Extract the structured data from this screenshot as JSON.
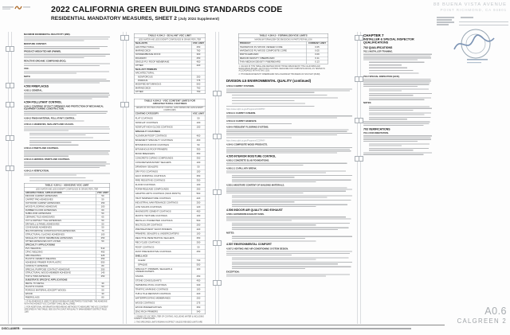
{
  "header": {
    "title": "2022 CALIFORNIA GREEN BUILDING STANDARDS CODE",
    "subtitle": "RESIDENTIAL MANDATORY MEASURES, SHEET 2",
    "subtitle_note": "(July 2024 Supplement)",
    "address_line1": "88 BUENA VISTA AVENUE",
    "address_line2": "POINT RICHMOND, CA 94801"
  },
  "titleblock": {
    "sheet_number": "A0.6",
    "sheet_name": "CALGREEN 2"
  },
  "footer": {
    "disclaimer_label": "DISCLAIMER:"
  },
  "col1": {
    "paras": [
      {
        "lead": "MAXIMUM INCREMENTAL REACTIVITY (MIR).",
        "lines": 3
      },
      {
        "lead": "MOISTURE CONTENT.",
        "lines": 2
      },
      {
        "lead": "PRODUCT-WEIGHTED MIR (PWMIR).",
        "lines": 3
      },
      {
        "lead": "REACTIVE ORGANIC COMPOUND (ROC).",
        "lines": 2
      },
      {
        "lead": "VOC.",
        "lines": 2
      },
      {
        "lead": "NOTE:",
        "lines": 3
      },
      {
        "heading": "4.503 FIREPLACES"
      },
      {
        "lead": "4.503.1 GENERAL.",
        "lines": 4
      },
      {
        "heading": "4.504 POLLUTANT CONTROL"
      },
      {
        "lead": "4.504.1 COVERING OF DUCT OPENINGS AND PROTECTION OF MECHANICAL EQUIPMENT DURING CONSTRUCTION.",
        "lines": 3
      },
      {
        "lead": "4.504.2 FINISH MATERIAL POLLUTANT CONTROL.",
        "lines": 1
      },
      {
        "lead": "4.504.2.1 ADHESIVES, SEALANTS AND CAULKS.",
        "lines": 3
      },
      {
        "indent": true,
        "lines": 2
      },
      {
        "indent": true,
        "lines": 1
      },
      {
        "indent": true,
        "lines": 2
      },
      {
        "indent": true,
        "lines": 1
      },
      {
        "lead": "4.504.2.2 PAINTS AND COATINGS.",
        "lines": 4
      },
      {
        "lead": "4.504.2.3 AEROSOL PAINTS AND COATINGS.",
        "lines": 4
      },
      {
        "lead": "4.504.2.4 VERIFICATION.",
        "lines": 2
      },
      {
        "indent": true,
        "lines": 1
      },
      {
        "indent": true,
        "lines": 1
      }
    ]
  },
  "col3": {
    "division_heading": "DIVISION 4.5   ENVIRONMENTAL QUALITY (continued)",
    "paras": [
      {
        "lead": "4.504.3 CARPET SYSTEMS.",
        "lines": 3
      },
      {
        "indent": true,
        "lines": 1
      },
      {
        "indent": true,
        "lines": 1
      },
      {
        "indent": true,
        "lines": 1
      },
      {
        "indent": true,
        "lines": 1
      },
      {
        "lines": 1
      },
      {
        "link": "https://www.cdph.ca.gov/Programs/CCDPHP/"
      },
      {
        "lead": "4.504.3.1 CARPET CUSHION.",
        "lines": 2
      },
      {
        "lead": "4.504.3.2 CARPET ADHESIVE.",
        "lines": 1
      },
      {
        "lead": "4.504.4 RESILIENT FLOORING SYSTEMS.",
        "lines": 4
      },
      {
        "lines": 1
      },
      {
        "link": "https://www.cdph.ca.gov/Programs/CCDPHP/"
      },
      {
        "lead": "4.504.5 COMPOSITE WOOD PRODUCTS.",
        "lines": 4
      },
      {
        "heading": "4.505 INTERIOR MOISTURE CONTROL"
      },
      {
        "lead": "4.505.2 CONCRETE SLAB FOUNDATIONS.",
        "lines": 2
      },
      {
        "lead": "4.505.2.1 CAPILLARY BREAK.",
        "lines": 2
      },
      {
        "indent": true,
        "lines": 2
      },
      {
        "indent": true,
        "lines": 2
      },
      {
        "lead": "4.505.3 MOISTURE CONTENT OF BUILDING MATERIALS.",
        "lines": 4
      },
      {
        "indent": true,
        "lines": 2
      },
      {
        "indent": true,
        "lines": 2
      },
      {
        "indent": true,
        "lines": 2
      },
      {
        "heading": "4.506 INDOOR AIR QUALITY AND EXHAUST"
      },
      {
        "lead": "4.506.1 BATHROOM EXHAUST FANS.",
        "lines": 3
      },
      {
        "indent": true,
        "lines": 2
      },
      {
        "indent": true,
        "lines": 2
      },
      {
        "lead": "NOTES:",
        "lines": 0
      },
      {
        "indent": true,
        "lines": 2
      },
      {
        "indent": true,
        "lines": 1
      },
      {
        "heading": "4.507 ENVIRONMENTAL COMFORT"
      },
      {
        "lead": "4.507.2 HEATING AND AIR-CONDITIONING SYSTEM DESIGN.",
        "lines": 3
      },
      {
        "indent": true,
        "lines": 2
      },
      {
        "indent": true,
        "lines": 2
      },
      {
        "indent": true,
        "lines": 2
      },
      {
        "lead": "EXCEPTION:",
        "lines": 2
      }
    ]
  },
  "col4": {
    "chapter": "CHAPTER 7",
    "chapter_sub": "INSTALLER & SPECIAL INSPECTOR QUALIFICATIONS",
    "section_702": "702 QUALIFICATIONS",
    "section_703": "703 VERIFICATIONS",
    "paras_702": [
      {
        "lead": "702.1 INSTALLER TRAINING.",
        "lines": 4
      },
      {
        "indent": true,
        "lines": 1
      },
      {
        "indent": true,
        "lines": 1
      },
      {
        "indent": true,
        "lines": 1
      },
      {
        "indent": true,
        "lines": 1
      },
      {
        "indent": true,
        "lines": 1
      },
      {
        "lead": "702.2 SPECIAL INSPECTION [HCD].",
        "lines": 5
      },
      {
        "indent": true,
        "lines": 2
      },
      {
        "indent": true,
        "lines": 2
      },
      {
        "indent": true,
        "lines": 2
      },
      {
        "lead": "NOTES:",
        "lines": 0
      },
      {
        "indent": true,
        "lines": 3
      },
      {
        "indent": true,
        "lines": 2
      },
      {
        "indent": true,
        "lines": 2
      },
      {
        "lines": 3
      }
    ],
    "paras_703": [
      {
        "lead": "703.1 DOCUMENTATION.",
        "lines": 4
      },
      {
        "indent": true,
        "lines": 2
      },
      {
        "indent": true,
        "lines": 2
      },
      {
        "lines": 2
      }
    ]
  },
  "tables": {
    "adhesive": {
      "title": "TABLE 4.504.1 - ADHESIVE VOC LIMIT",
      "note": "LESS WATER AND LESS EXEMPT COMPOUNDS IN GRAMS PER LITER",
      "cols": [
        "ARCHITECTURAL APPLICATIONS",
        "VOC LIMIT"
      ],
      "rows": [
        {
          "label": "INDOOR CARPET ADHESIVES",
          "value": "50"
        },
        {
          "label": "CARPET PAD ADHESIVES",
          "value": "50"
        },
        {
          "label": "OUTDOOR CARPET ADHESIVES",
          "value": "150"
        },
        {
          "label": "WOOD FLOORING ADHESIVE",
          "value": "100"
        },
        {
          "label": "RUBBER FLOOR ADHESIVES",
          "value": "60"
        },
        {
          "label": "SUBFLOOR ADHESIVES",
          "value": "50"
        },
        {
          "label": "CERAMIC TILE ADHESIVES",
          "value": "65"
        },
        {
          "label": "VCT & ASPHALT TILE ADHESIVES",
          "value": "50"
        },
        {
          "label": "DRYWALL & PANEL ADHESIVES",
          "value": "50"
        },
        {
          "label": "COVE BASE ADHESIVES",
          "value": "50"
        },
        {
          "label": "MULTIPURPOSE CONSTRUCTION ADHESIVES",
          "value": "70"
        },
        {
          "label": "STRUCTURAL GLAZING ADHESIVES",
          "value": "100"
        },
        {
          "label": "SINGLE-PLY ROOF MEMBRANE ADHESIVES",
          "value": "250"
        },
        {
          "label": "OTHER ADHESIVES NOT LISTED",
          "value": "50"
        },
        {
          "sub": "SPECIALTY APPLICATIONS"
        },
        {
          "label": "PVC WELDING",
          "value": "510"
        },
        {
          "label": "CPVC WELDING",
          "value": "490"
        },
        {
          "label": "ABS WELDING",
          "value": "325"
        },
        {
          "label": "PLASTIC CEMENT WELDING",
          "value": "250"
        },
        {
          "label": "ADHESIVE PRIMER FOR PLASTIC",
          "value": "550"
        },
        {
          "label": "CONTACT ADHESIVE",
          "value": "80"
        },
        {
          "label": "SPECIAL PURPOSE CONTACT ADHESIVE",
          "value": "250"
        },
        {
          "label": "STRUCTURAL WOOD MEMBER ADHESIVE",
          "value": "140"
        },
        {
          "label": "TOP & TRIM ADHESIVE",
          "value": "250"
        },
        {
          "sub": "SUBSTRATE SPECIFIC APPLICATIONS"
        },
        {
          "label": "METAL TO METAL",
          "value": "30"
        },
        {
          "label": "PLASTIC FOAMS",
          "value": "50"
        },
        {
          "label": "POROUS MATERIAL (EXCEPT WOOD)",
          "value": "50"
        },
        {
          "label": "WOOD",
          "value": "30"
        },
        {
          "label": "FIBERGLASS",
          "value": "80"
        }
      ],
      "footnotes": [
        "1. IF AN ADHESIVE IS USED TO BOND DISSIMILAR SUBSTRATES TOGETHER, THE ADHESIVE WITH THE HIGHEST VOC CONTENT SHALL BE ALLOWED.",
        "2. FOR ADDITIONAL INFORMATION REGARDING METHODS TO MEASURE THE VOC CONTENT SPECIFIED IN THIS TABLE, SEE SOUTH COAST AIR QUALITY MANAGEMENT DISTRICT RULE 1168."
      ]
    },
    "sealant": {
      "title": "TABLE 4.504.2 - SEALANT VOC LIMIT",
      "note": "LESS WATER AND LESS EXEMPT COMPOUNDS IN GRAMS PER LITER",
      "cols": [
        "SEALANTS",
        "VOC LIMIT"
      ],
      "rows": [
        {
          "label": "ARCHITECTURAL",
          "value": "250"
        },
        {
          "label": "MARINE DECK",
          "value": "760"
        },
        {
          "label": "NONMEMBRANE ROOF",
          "value": "300"
        },
        {
          "label": "ROADWAY",
          "value": "250"
        },
        {
          "label": "SINGLE-PLY ROOF MEMBRANE",
          "value": "450"
        },
        {
          "label": "OTHER",
          "value": "420"
        },
        {
          "sub": "SEALANT PRIMERS"
        },
        {
          "label": "ARCHITECTURAL",
          "value": ""
        },
        {
          "label": "NONPOROUS",
          "value": "250",
          "indent": true
        },
        {
          "label": "POROUS",
          "value": "775",
          "indent": true
        },
        {
          "label": "MODIFIED BITUMINOUS",
          "value": "500"
        },
        {
          "label": "MARINE DECK",
          "value": "760"
        },
        {
          "label": "OTHER",
          "value": "750"
        }
      ],
      "footnotes": []
    },
    "coatings": {
      "title": "TABLE 4.504.3 - VOC CONTENT LIMITS FOR ARCHITECTURAL COATINGS",
      "note": "GRAMS OF VOC PER LITER OF COATING, LESS WATER AND LESS EXEMPT COMPOUNDS",
      "cols": [
        "COATING CATEGORY",
        "VOC LIMIT"
      ],
      "rows": [
        {
          "label": "FLAT COATINGS",
          "value": "50"
        },
        {
          "label": "NONFLAT COATINGS",
          "value": "100"
        },
        {
          "label": "NONFLAT-HIGH GLOSS COATINGS",
          "value": "150"
        },
        {
          "sub": "SPECIALTY COATINGS"
        },
        {
          "label": "ALUMINUM ROOF COATINGS",
          "value": "400"
        },
        {
          "label": "BASEMENT SPECIALTY COATINGS",
          "value": "400"
        },
        {
          "label": "BITUMINOUS ROOF COATINGS",
          "value": "50"
        },
        {
          "label": "BITUMINOUS ROOF PRIMERS",
          "value": "350"
        },
        {
          "label": "BOND BREAKERS",
          "value": "350"
        },
        {
          "label": "CONCRETE CURING COMPOUNDS",
          "value": "350"
        },
        {
          "label": "CONCRETE/MASONRY SEALERS",
          "value": "100"
        },
        {
          "label": "DRIVEWAY SEALERS",
          "value": "50"
        },
        {
          "label": "DRY FOG COATINGS",
          "value": "150"
        },
        {
          "label": "FAUX FINISHING COATINGS",
          "value": "350"
        },
        {
          "label": "FIRE RESISTIVE COATINGS",
          "value": "350"
        },
        {
          "label": "FLOOR COATINGS",
          "value": "100"
        },
        {
          "label": "FORM-RELEASE COMPOUNDS",
          "value": "250"
        },
        {
          "label": "GRAPHIC ARTS COATINGS (SIGN PAINTS)",
          "value": "500"
        },
        {
          "label": "HIGH TEMPERATURE COATINGS",
          "value": "420"
        },
        {
          "label": "INDUSTRIAL MAINTENANCE COATINGS",
          "value": "250"
        },
        {
          "label": "LOW SOLIDS COATINGS",
          "value": "120"
        },
        {
          "label": "MAGNESITE CEMENT COATINGS",
          "value": "450"
        },
        {
          "label": "MASTIC TEXTURE COATINGS",
          "value": "100"
        },
        {
          "label": "METALLIC PIGMENTED COATINGS",
          "value": "500"
        },
        {
          "label": "MULTICOLOR COATINGS",
          "value": "250"
        },
        {
          "label": "PRETREATMENT WASH PRIMERS",
          "value": "420"
        },
        {
          "label": "PRIMERS, SEALERS & UNDERCOATERS",
          "value": "100"
        },
        {
          "label": "REACTIVE PENETRATING SEALERS",
          "value": "350"
        },
        {
          "label": "RECYCLED COATINGS",
          "value": "250"
        },
        {
          "label": "ROOF COATINGS",
          "value": "50"
        },
        {
          "label": "RUST PREVENTATIVE COATINGS",
          "value": "250"
        },
        {
          "sub": "SHELLACS"
        },
        {
          "label": "CLEAR",
          "value": "730",
          "indent": true
        },
        {
          "label": "OPAQUE",
          "value": "550",
          "indent": true
        },
        {
          "label": "SPECIALTY PRIMERS, SEALERS & UNDERCOATERS",
          "value": "100"
        },
        {
          "label": "STAINS",
          "value": "250"
        },
        {
          "label": "STONE CONSOLIDANTS",
          "value": "450"
        },
        {
          "label": "SWIMMING POOL COATINGS",
          "value": "340"
        },
        {
          "label": "TRAFFIC MARKING COATINGS",
          "value": "100"
        },
        {
          "label": "TUB & TILE REFINISH COATINGS",
          "value": "420"
        },
        {
          "label": "WATERPROOFING MEMBRANES",
          "value": "250"
        },
        {
          "label": "WOOD COATINGS",
          "value": "275"
        },
        {
          "label": "WOOD PRESERVATIVES",
          "value": "350"
        },
        {
          "label": "ZINC-RICH PRIMERS",
          "value": "340"
        }
      ],
      "footnotes": [
        "1. GRAMS OF VOC PER LITER OF COATING, INCLUDING WATER & INCLUDING EXEMPT COMPOUNDS.",
        "2. THE SPECIFIED LIMITS REMAIN IN EFFECT UNLESS REVISED LIMITS ARE LISTED IN SUBSEQUENT COLUMNS IN THE TABLE.",
        "3. VALUES IN THIS TABLE ARE DERIVED FROM THOSE SPECIFIED BY THE CALIFORNIA AIR RESOURCES BOARD, ARCHITECTURAL COATINGS SUGGESTED CONTROL MEASURE, FEB. 1, 2008. MORE INFORMATION IS AVAILABLE FROM THE AIR RESOURCES BOARD."
      ]
    },
    "formaldehyde": {
      "title": "TABLE 4.504.5 - FORMALDEHYDE LIMITS",
      "note": "MAXIMUM FORMALDEHYDE EMISSIONS IN PARTS PER MILLION",
      "cols": [
        "PRODUCT",
        "CURRENT LIMIT"
      ],
      "rows": [
        {
          "label": "HARDWOOD PLYWOOD VENEER CORE",
          "value": "0.05"
        },
        {
          "label": "HARDWOOD PLYWOOD COMPOSITE CORE",
          "value": "0.05"
        },
        {
          "label": "PARTICLEBOARD",
          "value": "0.09"
        },
        {
          "label": "MEDIUM DENSITY FIBERBOARD",
          "value": "0.11"
        },
        {
          "label": "THIN MEDIUM DENSITY FIBERBOARD",
          "value": "0.13"
        }
      ],
      "footnotes": [
        "1. VALUES IN THIS TABLE ARE DERIVED FROM THOSE SPECIFIED BY THE CALIFORNIA AIR RESOURCES BOARD, AIR TOXICS CONTROL MEASURE FOR COMPOSITE WOOD, AS TESTED IN ACCORDANCE WITH ASTM E 1333.",
        "2. THIN MEDIUM DENSITY FIBERBOARD HAS A MAXIMUM THICKNESS OF 5/16 INCH (8 MM)."
      ]
    }
  }
}
